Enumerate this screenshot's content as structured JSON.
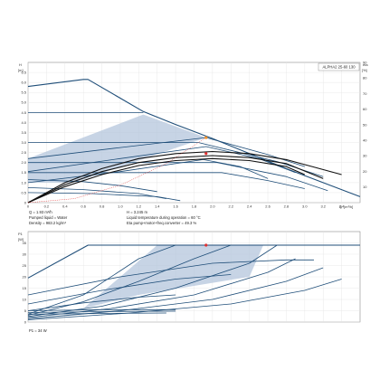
{
  "colors": {
    "curve": "#1f4e79",
    "fill": "#b4c6dc",
    "grid": "#e3e3e3",
    "frame": "#777777",
    "operating_point": "#e03030",
    "operating_point_eta": "#f0902a",
    "black_curve": "#111111"
  },
  "info": {
    "q": "Q = 1.93 m³/h",
    "h": "H = 3.245 m",
    "liquid": "Pumped liquid = Water",
    "temp": "Liquid temperature during operation = 60 °C",
    "density": "Density = 983.2 kg/m³",
    "eta": "Eta pump+motor+freq.converter = 49.3 %",
    "p1": "P1 = 34 W"
  },
  "chart_data": [
    {
      "type": "line",
      "title": "ALPHA2 25-60 130",
      "ylabel": "H",
      "yunit": "[m]",
      "y2label": "eta",
      "y2unit": "[%]",
      "xlabel": "Q",
      "xunit": "[m³/h]",
      "xlim": [
        0,
        3.6
      ],
      "ylim": [
        0,
        7
      ],
      "y2lim": [
        0,
        90
      ],
      "xticks": [
        "0",
        "0.2",
        "0.4",
        "0.6",
        "0.8",
        "1.0",
        "1.2",
        "1.4",
        "1.6",
        "1.8",
        "2.0",
        "2.2",
        "2.4",
        "2.6",
        "2.8",
        "3.0",
        "3.2",
        "3.4"
      ],
      "yticks": [
        "0",
        "0.5",
        "1.0",
        "1.5",
        "2.0",
        "2.5",
        "3.0",
        "3.5",
        "4.0",
        "4.5",
        "5.0",
        "5.5",
        "6.0",
        "6.5"
      ],
      "y2ticks": [
        "10",
        "20",
        "30",
        "40",
        "50",
        "60",
        "70",
        "80",
        "90"
      ],
      "shaded_region": {
        "x": [
          0,
          0,
          1.25,
          1.93,
          0.5,
          0
        ],
        "y": [
          1.0,
          2.2,
          4.4,
          3.245,
          1.0,
          1.0
        ]
      },
      "series": [
        {
          "role": "max",
          "x": [
            0,
            0.6,
            0.65,
            1.25,
            1.6,
            2.0,
            2.4,
            2.8,
            3.2,
            3.6
          ],
          "y": [
            5.8,
            6.15,
            6.15,
            4.55,
            3.9,
            3.2,
            2.45,
            1.7,
            1.0,
            0.3
          ]
        },
        {
          "role": "flat",
          "x": [
            0,
            1.25
          ],
          "y": [
            4.5,
            4.5
          ]
        },
        {
          "role": "flat",
          "x": [
            0,
            1.85,
            2.7,
            3.2
          ],
          "y": [
            3.0,
            3.0,
            2.05,
            1.3
          ]
        },
        {
          "role": "flat",
          "x": [
            0,
            2.05,
            2.8,
            3.25
          ],
          "y": [
            2.0,
            2.0,
            1.3,
            0.6
          ]
        },
        {
          "role": "flat",
          "x": [
            0,
            2.1,
            2.6,
            3.0
          ],
          "y": [
            1.5,
            1.5,
            1.1,
            0.7
          ]
        },
        {
          "role": "prop",
          "x": [
            0,
            1.0,
            1.93,
            2.6,
            3.0
          ],
          "y": [
            2.2,
            2.75,
            3.245,
            2.4,
            1.8
          ]
        },
        {
          "role": "prop",
          "x": [
            0,
            1.0,
            1.93,
            2.5,
            2.9
          ],
          "y": [
            1.55,
            2.2,
            2.8,
            2.2,
            1.5
          ]
        },
        {
          "role": "prop",
          "x": [
            0,
            1.0,
            1.9,
            2.3,
            2.6
          ],
          "y": [
            1.0,
            1.55,
            2.15,
            1.8,
            1.2
          ]
        },
        {
          "role": "low",
          "x": [
            0,
            0.6,
            1.0,
            1.4
          ],
          "y": [
            1.15,
            1.05,
            0.85,
            0.55
          ]
        },
        {
          "role": "low",
          "x": [
            0,
            0.6,
            1.2,
            1.5
          ],
          "y": [
            0.75,
            0.65,
            0.45,
            0.2
          ]
        },
        {
          "role": "low",
          "x": [
            0,
            0.7,
            1.4,
            1.65
          ],
          "y": [
            0.5,
            0.45,
            0.3,
            0.1
          ]
        },
        {
          "role": "eta",
          "x": [
            0,
            0.4,
            0.8,
            1.2,
            1.6,
            2.0,
            2.4,
            2.8,
            3.4
          ],
          "y": [
            0,
            1.0,
            1.7,
            2.2,
            2.45,
            2.55,
            2.45,
            2.15,
            1.4
          ]
        },
        {
          "role": "eta",
          "x": [
            0,
            0.4,
            0.8,
            1.2,
            1.6,
            2.0,
            2.4,
            2.8,
            3.2
          ],
          "y": [
            0,
            0.9,
            1.55,
            2.0,
            2.25,
            2.35,
            2.25,
            1.95,
            1.2
          ]
        },
        {
          "role": "eta",
          "x": [
            0,
            0.4,
            0.8,
            1.2,
            1.6,
            2.0,
            2.4,
            2.8,
            3.0
          ],
          "y": [
            0,
            0.8,
            1.4,
            1.85,
            2.1,
            2.2,
            2.1,
            1.8,
            1.4
          ]
        },
        {
          "role": "system",
          "x": [
            0,
            0.5,
            1.0,
            1.5,
            1.93
          ],
          "y": [
            0,
            0.2,
            0.87,
            1.95,
            3.245
          ]
        }
      ],
      "operating_points": [
        {
          "x": 1.93,
          "y": 3.245,
          "role": "duty"
        },
        {
          "x": 1.93,
          "y": 2.45,
          "role": "eta"
        }
      ]
    },
    {
      "type": "line",
      "ylabel": "P1",
      "yunit": "[W]",
      "ylim": [
        0,
        40
      ],
      "yticks": [
        "0",
        "5",
        "10",
        "15",
        "20",
        "25",
        "30",
        "35"
      ],
      "shaded_region": {
        "x": [
          0.6,
          1.4,
          2.55,
          2.4,
          1.2,
          0.6
        ],
        "y": [
          6,
          34,
          34,
          20,
          12,
          6
        ]
      },
      "series": [
        {
          "role": "top",
          "x": [
            0,
            0.65,
            3.6
          ],
          "y": [
            19.5,
            34,
            34
          ]
        },
        {
          "role": "sweep",
          "x": [
            0,
            0.6,
            1.2,
            1.6
          ],
          "y": [
            3.5,
            12,
            28,
            34
          ]
        },
        {
          "role": "sweep",
          "x": [
            0,
            0.6,
            1.2,
            1.8,
            2.2
          ],
          "y": [
            3.0,
            9,
            18,
            28,
            34
          ]
        },
        {
          "role": "sweep",
          "x": [
            0,
            0.8,
            1.6,
            2.4,
            2.7
          ],
          "y": [
            2.5,
            7,
            15,
            26,
            34
          ]
        },
        {
          "role": "sweep",
          "x": [
            0,
            0.9,
            1.8,
            2.6,
            2.9
          ],
          "y": [
            2.0,
            6,
            12,
            22,
            28
          ]
        },
        {
          "role": "sweep",
          "x": [
            0,
            1.0,
            2.0,
            2.8,
            3.2
          ],
          "y": [
            1.5,
            5,
            10,
            18,
            24
          ]
        },
        {
          "role": "sweep",
          "x": [
            0,
            1.1,
            2.2,
            3.0,
            3.4
          ],
          "y": [
            1.0,
            4,
            8,
            14,
            19
          ]
        },
        {
          "role": "arc",
          "x": [
            0,
            1.0,
            2.0,
            2.8,
            3.1
          ],
          "y": [
            12,
            20,
            26,
            27.5,
            27.5
          ]
        },
        {
          "role": "arc",
          "x": [
            0,
            0.8,
            1.6,
            2.2
          ],
          "y": [
            8,
            14,
            19,
            21
          ]
        },
        {
          "role": "arc",
          "x": [
            0,
            0.6,
            1.2,
            1.6
          ],
          "y": [
            5,
            8.5,
            11,
            12
          ]
        },
        {
          "role": "low",
          "x": [
            0,
            0.8,
            1.6
          ],
          "y": [
            5,
            5.5,
            5.5
          ]
        },
        {
          "role": "low",
          "x": [
            0,
            0.8,
            1.6
          ],
          "y": [
            4.2,
            4.6,
            4.8
          ]
        },
        {
          "role": "low",
          "x": [
            0,
            0.8,
            1.5
          ],
          "y": [
            3.5,
            3.8,
            4.0
          ]
        }
      ],
      "operating_points": [
        {
          "x": 1.93,
          "y": 34,
          "role": "duty"
        }
      ]
    }
  ]
}
